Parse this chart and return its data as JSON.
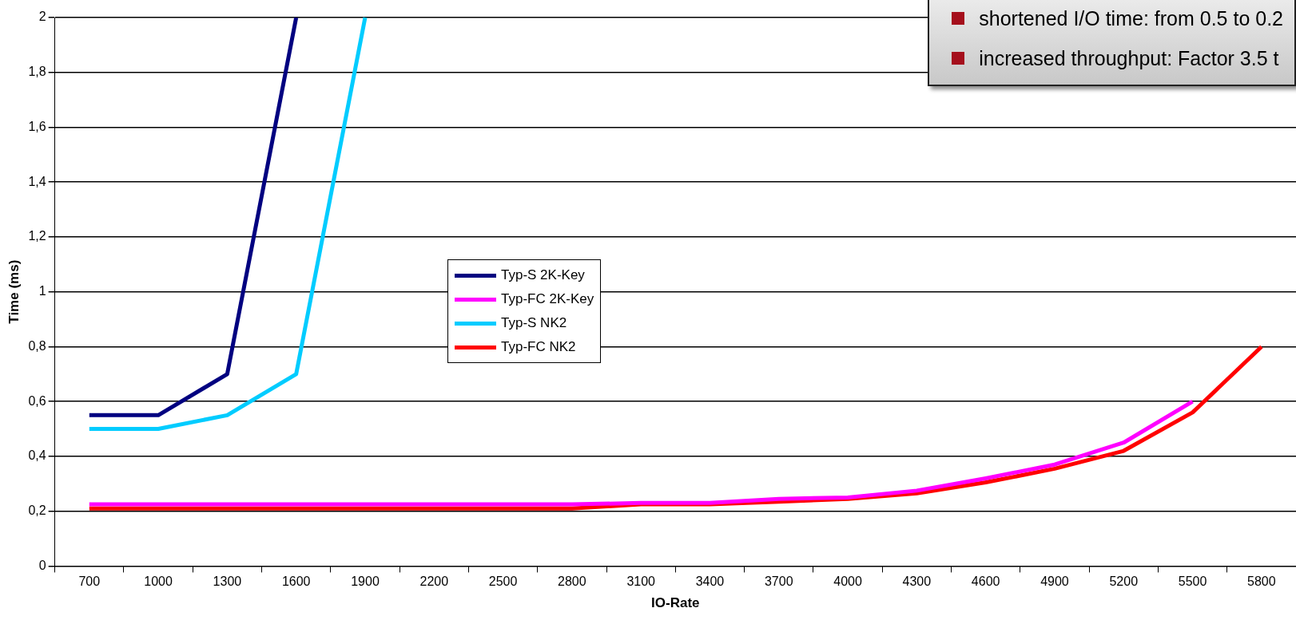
{
  "chart_data": {
    "type": "line",
    "xlabel": "IO-Rate",
    "ylabel": "Time (ms)",
    "categories": [
      "700",
      "1000",
      "1300",
      "1600",
      "1900",
      "2200",
      "2500",
      "2800",
      "3100",
      "3400",
      "3700",
      "4000",
      "4300",
      "4600",
      "4900",
      "5200",
      "5500",
      "5800"
    ],
    "series": [
      {
        "name": "Typ-S 2K-Key",
        "color": "#000080",
        "values": [
          0.55,
          0.55,
          0.7,
          2,
          null,
          null,
          null,
          null,
          null,
          null,
          null,
          null,
          null,
          null,
          null,
          null,
          null,
          null
        ]
      },
      {
        "name": "Typ-FC 2K-Key",
        "color": "#ff00ff",
        "values": [
          0.225,
          0.225,
          0.225,
          0.225,
          0.225,
          0.225,
          0.225,
          0.225,
          0.23,
          0.23,
          0.245,
          0.25,
          0.275,
          0.32,
          0.37,
          0.45,
          0.6,
          null
        ]
      },
      {
        "name": "Typ-S NK2",
        "color": "#00ccff",
        "values": [
          0.5,
          0.5,
          0.55,
          0.7,
          2,
          null,
          null,
          null,
          null,
          null,
          null,
          null,
          null,
          null,
          null,
          null,
          null,
          null
        ]
      },
      {
        "name": "Typ-FC NK2",
        "color": "#ff0000",
        "values": [
          0.21,
          0.21,
          0.21,
          0.21,
          0.21,
          0.21,
          0.21,
          0.21,
          0.225,
          0.225,
          0.235,
          0.245,
          0.265,
          0.305,
          0.355,
          0.42,
          0.56,
          0.8
        ]
      }
    ],
    "ylim": [
      0,
      2
    ],
    "yticks": [
      0,
      {
        "value": 0.2,
        "label": "0,2"
      },
      {
        "value": 0.4,
        "label": "0,4"
      },
      {
        "value": 0.6,
        "label": "0,6"
      },
      {
        "value": 0.8,
        "label": "0,8"
      },
      1,
      {
        "value": 1.2,
        "label": "1,2"
      },
      {
        "value": 1.4,
        "label": "1,4"
      },
      {
        "value": 1.6,
        "label": "1,6"
      },
      {
        "value": 1.8,
        "label": "1,8"
      },
      2
    ],
    "grid": "y",
    "legend": "center",
    "marker": "none",
    "line_style": "solid",
    "annotations": [
      "shortened I/O time: from 0.5 to 0.2",
      "increased throughput: Factor 3.5 t"
    ]
  }
}
